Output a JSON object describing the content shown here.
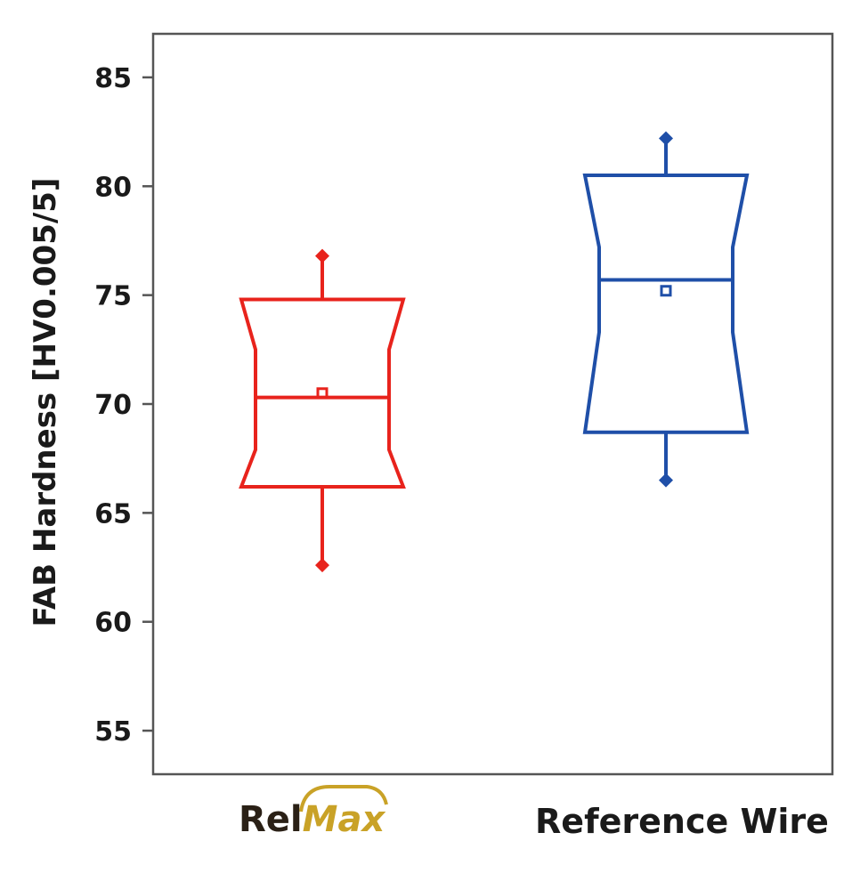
{
  "chart_data": {
    "type": "boxplot",
    "ylabel": "FAB Hardness [HV0.005/5]",
    "ylim": [
      53,
      87
    ],
    "yticks": [
      55,
      60,
      65,
      70,
      75,
      80,
      85
    ],
    "grid": false,
    "categories": [
      "RelMax",
      "Reference Wire"
    ],
    "logo_text": {
      "part1": "Rel",
      "part2": "Max"
    },
    "series": [
      {
        "category": "RelMax",
        "color": "#e8231c",
        "whisker_low": 62.6,
        "q1": 66.2,
        "notch_low": 67.9,
        "median": 70.3,
        "notch_high": 72.5,
        "q3": 74.8,
        "whisker_high": 76.8,
        "mean": 70.5
      },
      {
        "category": "Reference Wire",
        "color": "#1f4fa8",
        "whisker_low": 66.5,
        "q1": 68.7,
        "notch_low": 73.3,
        "median": 75.7,
        "notch_high": 77.2,
        "q3": 80.5,
        "whisker_high": 82.2,
        "mean": 75.2
      }
    ]
  }
}
